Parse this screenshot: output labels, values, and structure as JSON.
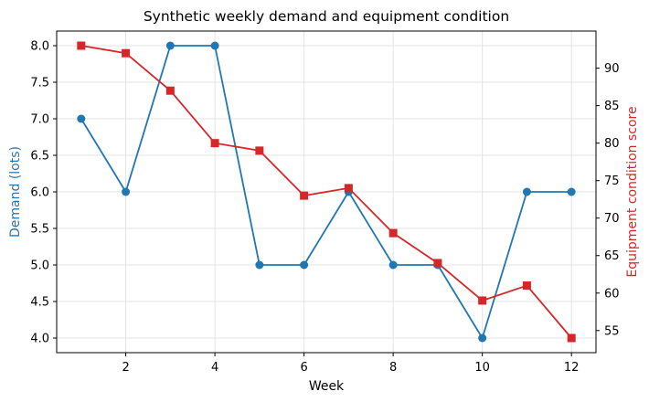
{
  "chart_data": {
    "type": "line",
    "title": "Synthetic weekly demand and equipment condition",
    "xlabel": "Week",
    "ylabel_left": "Demand (lots)",
    "ylabel_right": "Equipment condition score",
    "x": [
      1,
      2,
      3,
      4,
      5,
      6,
      7,
      8,
      9,
      10,
      11,
      12
    ],
    "x_ticks": [
      2,
      4,
      6,
      8,
      10,
      12
    ],
    "xlim": [
      0.45,
      12.55
    ],
    "ylim_left": [
      3.8,
      8.2
    ],
    "y_ticks_left": [
      4.0,
      4.5,
      5.0,
      5.5,
      6.0,
      6.5,
      7.0,
      7.5,
      8.0
    ],
    "ylim_right": [
      52.05,
      94.95
    ],
    "y_ticks_right": [
      55,
      60,
      65,
      70,
      75,
      80,
      85,
      90
    ],
    "grid": true,
    "series": [
      {
        "axis": "left",
        "marker": "circle",
        "color": "#1f77b4",
        "values": [
          7,
          6,
          8,
          8,
          5,
          5,
          6,
          5,
          5,
          4,
          6,
          6
        ]
      },
      {
        "axis": "right",
        "marker": "square",
        "color": "#d62728",
        "values": [
          93,
          92,
          87,
          80,
          79,
          73,
          74,
          68,
          64,
          59,
          61,
          54
        ]
      }
    ]
  }
}
